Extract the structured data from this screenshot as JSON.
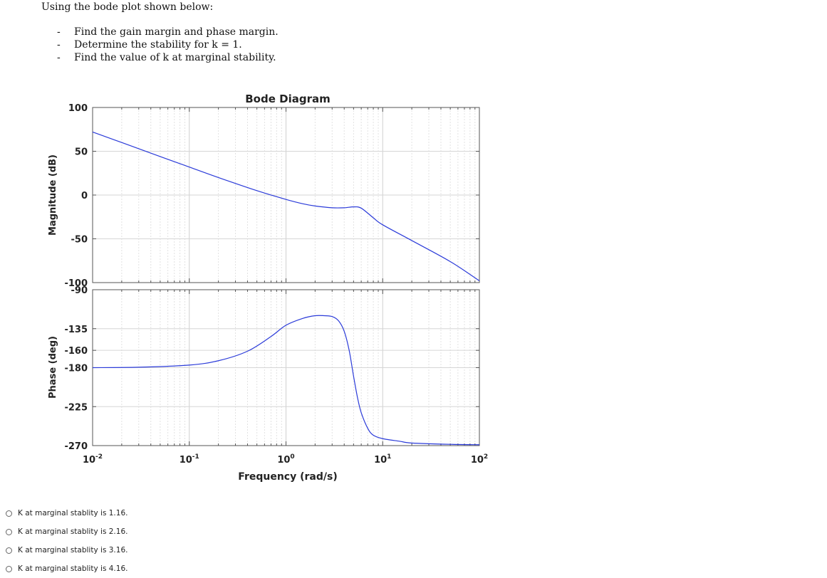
{
  "question": {
    "intro": "Using the bode plot shown below:",
    "items": [
      "Find the gain margin and phase margin.",
      "Determine the stability for k = 1.",
      "Find the value of k at marginal stability."
    ]
  },
  "chart_data": {
    "type": "line",
    "title": "Bode Diagram",
    "xlabel": "Frequency  (rad/s)",
    "xscale": "log",
    "xlim": [
      0.01,
      100
    ],
    "x_ticks": [
      0.01,
      0.1,
      1,
      10,
      100
    ],
    "x_tick_labels": [
      [
        "10",
        "-2"
      ],
      [
        "10",
        "-1"
      ],
      [
        "10",
        "0"
      ],
      [
        "10",
        "1"
      ],
      [
        "10",
        "2"
      ]
    ],
    "grid": true,
    "line_color": "#2b3bd9",
    "magnitude": {
      "ylabel": "Magnitude (dB)",
      "ylim": [
        -100,
        100
      ],
      "y_ticks": [
        100,
        50,
        0,
        -50,
        -100
      ],
      "y_tick_labels": [
        "100",
        "50",
        "0",
        "-50",
        "-100"
      ],
      "x": [
        0.01,
        0.02,
        0.05,
        0.1,
        0.2,
        0.5,
        1,
        1.5,
        2,
        3,
        4,
        5,
        6,
        8,
        10,
        20,
        50,
        100
      ],
      "y": [
        72,
        60,
        44,
        32,
        20,
        5,
        -5,
        -10,
        -12.5,
        -14.5,
        -14.5,
        -13.5,
        -15,
        -26,
        -34,
        -52,
        -76,
        -98
      ]
    },
    "phase": {
      "ylabel": "Phase (deg)",
      "ylim": [
        -270,
        -90
      ],
      "y_ticks": [
        -90,
        -135,
        -160,
        -180,
        -225,
        -270
      ],
      "y_tick_labels": [
        "-90",
        "-135",
        "-160",
        "-180",
        "-225",
        "-270"
      ],
      "x": [
        0.01,
        0.03,
        0.1,
        0.2,
        0.4,
        0.7,
        1,
        1.5,
        2,
        2.5,
        3,
        3.5,
        4,
        4.5,
        5,
        5.5,
        6,
        7,
        8,
        10,
        15,
        20,
        50,
        100
      ],
      "y": [
        -180,
        -179.5,
        -177,
        -172,
        -161,
        -144,
        -131,
        -123,
        -120,
        -120,
        -121,
        -126,
        -138,
        -160,
        -190,
        -215,
        -232,
        -250,
        -258,
        -262,
        -265,
        -267,
        -268.5,
        -269
      ]
    }
  },
  "options": [
    "K at marginal stablity is 1.16.",
    "K at marginal stablity is 2.16.",
    "K at marginal stablity is 3.16.",
    "K at marginal stablity is 4.16."
  ]
}
